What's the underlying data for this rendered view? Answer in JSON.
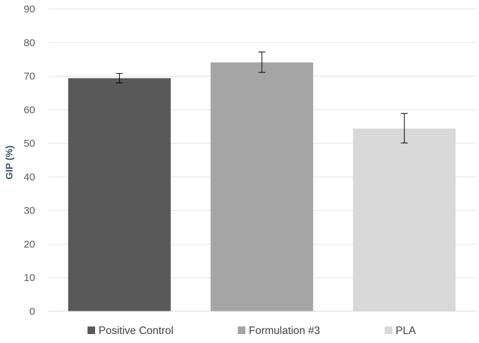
{
  "chart_data": {
    "type": "bar",
    "title": "",
    "xlabel": "",
    "ylabel": "GIP (%)",
    "ylim": [
      0,
      90
    ],
    "ytick_step": 10,
    "grid": true,
    "legend_position": "bottom",
    "categories": [
      "Positive Control",
      "Formulation #3",
      "PLA"
    ],
    "values": [
      69.4,
      74.1,
      54.4
    ],
    "error_low": [
      1.4,
      3.0,
      4.3
    ],
    "error_high": [
      1.4,
      3.1,
      4.5
    ],
    "colors": [
      "#595959",
      "#a5a5a5",
      "#d9d9d9"
    ]
  }
}
